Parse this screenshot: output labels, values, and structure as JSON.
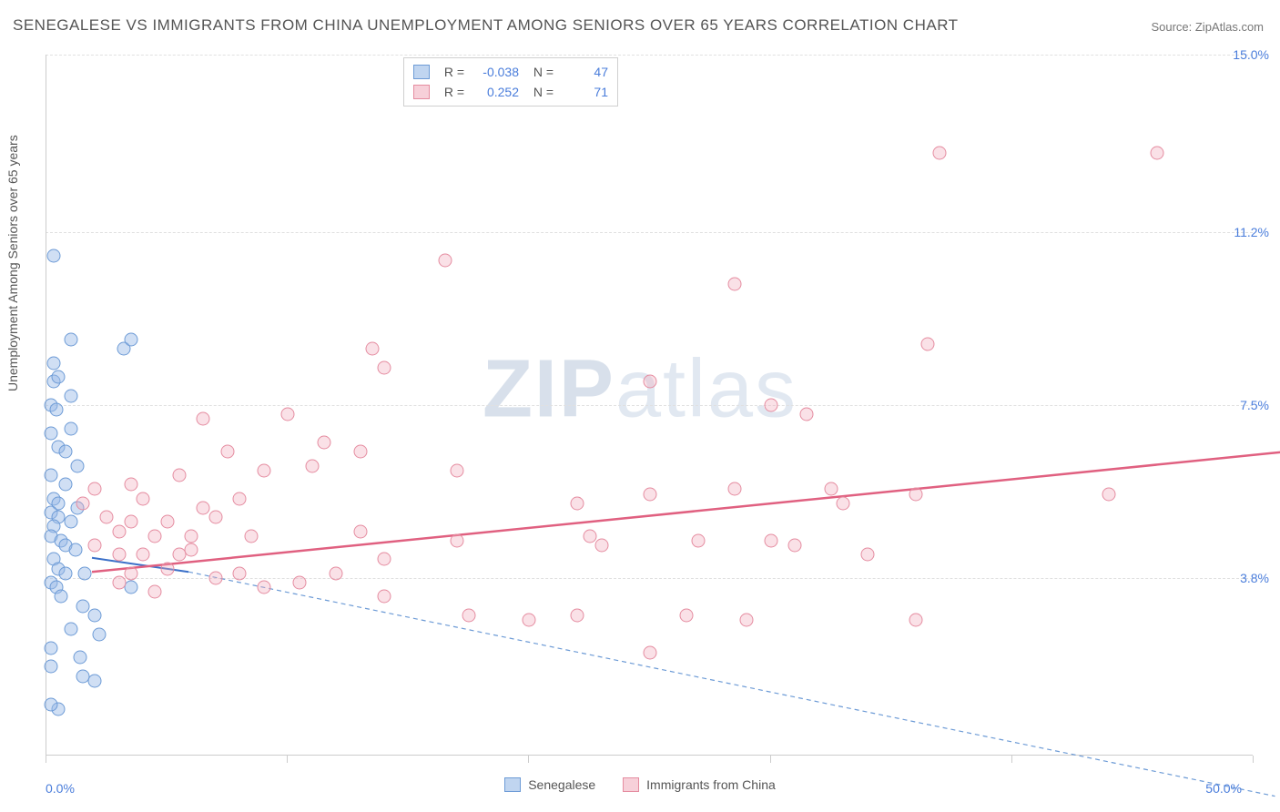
{
  "title": "SENEGALESE VS IMMIGRANTS FROM CHINA UNEMPLOYMENT AMONG SENIORS OVER 65 YEARS CORRELATION CHART",
  "source": "Source: ZipAtlas.com",
  "y_axis_label": "Unemployment Among Seniors over 65 years",
  "watermark_prefix": "ZIP",
  "watermark_suffix": "atlas",
  "chart": {
    "type": "scatter",
    "xlim": [
      0,
      50
    ],
    "ylim": [
      0,
      15
    ],
    "x_ticks": [
      0,
      10,
      20,
      30,
      40,
      50
    ],
    "x_tick_labels": {
      "0": "0.0%",
      "50": "50.0%"
    },
    "y_ticks": [
      3.8,
      7.5,
      11.2,
      15.0
    ],
    "y_tick_labels": [
      "3.8%",
      "7.5%",
      "11.2%",
      "15.0%"
    ],
    "grid_color": "#e0e0e0",
    "background_color": "#ffffff",
    "axis_color": "#cccccc",
    "tick_label_color": "#4a7ddb",
    "marker_radius": 7.5,
    "series": [
      {
        "id": "senegalese",
        "label": "Senegalese",
        "color_fill": "rgba(150,185,230,0.45)",
        "color_stroke": "#6d9bd6",
        "R": "-0.038",
        "N": "47",
        "trend_line": {
          "x1": 0,
          "y1": 5.4,
          "x2": 4,
          "y2": 5.1,
          "stroke": "#3a6fc8",
          "width": 2,
          "dash": "none"
        },
        "trend_dashed": {
          "x1": 4,
          "y1": 5.1,
          "x2": 49,
          "y2": 0.3,
          "stroke": "#6d9bd6",
          "width": 1.2,
          "dash": "5,4"
        },
        "points": [
          [
            0.3,
            10.7
          ],
          [
            1.0,
            8.9
          ],
          [
            3.2,
            8.7
          ],
          [
            3.5,
            8.9
          ],
          [
            0.3,
            8.4
          ],
          [
            0.3,
            8.0
          ],
          [
            0.5,
            8.1
          ],
          [
            1.0,
            7.7
          ],
          [
            0.2,
            7.5
          ],
          [
            0.4,
            7.4
          ],
          [
            1.0,
            7.0
          ],
          [
            0.2,
            6.9
          ],
          [
            0.5,
            6.6
          ],
          [
            0.8,
            6.5
          ],
          [
            1.3,
            6.2
          ],
          [
            0.2,
            6.0
          ],
          [
            0.8,
            5.8
          ],
          [
            0.3,
            5.5
          ],
          [
            0.5,
            5.4
          ],
          [
            1.3,
            5.3
          ],
          [
            0.2,
            5.2
          ],
          [
            0.5,
            5.1
          ],
          [
            1.0,
            5.0
          ],
          [
            0.3,
            4.9
          ],
          [
            0.2,
            4.7
          ],
          [
            0.6,
            4.6
          ],
          [
            0.8,
            4.5
          ],
          [
            1.2,
            4.4
          ],
          [
            0.3,
            4.2
          ],
          [
            0.5,
            4.0
          ],
          [
            0.8,
            3.9
          ],
          [
            1.6,
            3.9
          ],
          [
            0.2,
            3.7
          ],
          [
            0.4,
            3.6
          ],
          [
            3.5,
            3.6
          ],
          [
            0.6,
            3.4
          ],
          [
            1.5,
            3.2
          ],
          [
            2.0,
            3.0
          ],
          [
            1.0,
            2.7
          ],
          [
            2.2,
            2.6
          ],
          [
            0.2,
            2.3
          ],
          [
            1.4,
            2.1
          ],
          [
            0.2,
            1.9
          ],
          [
            1.5,
            1.7
          ],
          [
            2.0,
            1.6
          ],
          [
            0.5,
            1.0
          ],
          [
            0.2,
            1.1
          ]
        ]
      },
      {
        "id": "china",
        "label": "Immigrants from China",
        "color_fill": "rgba(240,170,185,0.35)",
        "color_stroke": "#e58ca0",
        "R": "0.252",
        "N": "71",
        "trend_line": {
          "x1": 0,
          "y1": 5.1,
          "x2": 50,
          "y2": 7.7,
          "stroke": "#e06080",
          "width": 2.5,
          "dash": "none"
        },
        "points": [
          [
            37.0,
            12.9
          ],
          [
            46.0,
            12.9
          ],
          [
            16.5,
            10.6
          ],
          [
            28.5,
            10.1
          ],
          [
            36.5,
            8.8
          ],
          [
            13.5,
            8.7
          ],
          [
            25.0,
            8.0
          ],
          [
            14.0,
            8.3
          ],
          [
            30.0,
            7.5
          ],
          [
            31.5,
            7.3
          ],
          [
            6.5,
            7.2
          ],
          [
            10.0,
            7.3
          ],
          [
            11.5,
            6.7
          ],
          [
            7.5,
            6.5
          ],
          [
            13.0,
            6.5
          ],
          [
            3.5,
            5.8
          ],
          [
            5.5,
            6.0
          ],
          [
            9.0,
            6.1
          ],
          [
            11.0,
            6.2
          ],
          [
            17.0,
            6.1
          ],
          [
            4.0,
            5.5
          ],
          [
            6.5,
            5.3
          ],
          [
            8.0,
            5.5
          ],
          [
            2.5,
            5.1
          ],
          [
            3.5,
            5.0
          ],
          [
            5.0,
            5.0
          ],
          [
            7.0,
            5.1
          ],
          [
            25.0,
            5.6
          ],
          [
            28.5,
            5.7
          ],
          [
            32.5,
            5.7
          ],
          [
            36.0,
            5.6
          ],
          [
            44.0,
            5.6
          ],
          [
            22.0,
            5.4
          ],
          [
            33.0,
            5.4
          ],
          [
            3.0,
            4.8
          ],
          [
            4.5,
            4.7
          ],
          [
            6.0,
            4.7
          ],
          [
            8.5,
            4.7
          ],
          [
            13.0,
            4.8
          ],
          [
            17.0,
            4.6
          ],
          [
            22.5,
            4.7
          ],
          [
            27.0,
            4.6
          ],
          [
            30.0,
            4.6
          ],
          [
            23.0,
            4.5
          ],
          [
            31.0,
            4.5
          ],
          [
            2.0,
            4.5
          ],
          [
            3.0,
            4.3
          ],
          [
            4.0,
            4.3
          ],
          [
            5.5,
            4.3
          ],
          [
            12.0,
            3.9
          ],
          [
            14.0,
            4.2
          ],
          [
            34.0,
            4.3
          ],
          [
            3.5,
            3.9
          ],
          [
            9.0,
            3.6
          ],
          [
            10.5,
            3.7
          ],
          [
            20.0,
            2.9
          ],
          [
            22.0,
            3.0
          ],
          [
            26.5,
            3.0
          ],
          [
            29.0,
            2.9
          ],
          [
            36.0,
            2.9
          ],
          [
            17.5,
            3.0
          ],
          [
            14.0,
            3.4
          ],
          [
            25.0,
            2.2
          ],
          [
            1.5,
            5.4
          ],
          [
            2.0,
            5.7
          ],
          [
            5.0,
            4.0
          ],
          [
            3.0,
            3.7
          ],
          [
            7.0,
            3.8
          ],
          [
            4.5,
            3.5
          ],
          [
            6.0,
            4.4
          ],
          [
            8.0,
            3.9
          ]
        ]
      }
    ]
  },
  "stats_legend": {
    "r_label": "R =",
    "n_label": "N ="
  },
  "bottom_legend_labels": [
    "Senegalese",
    "Immigrants from China"
  ]
}
